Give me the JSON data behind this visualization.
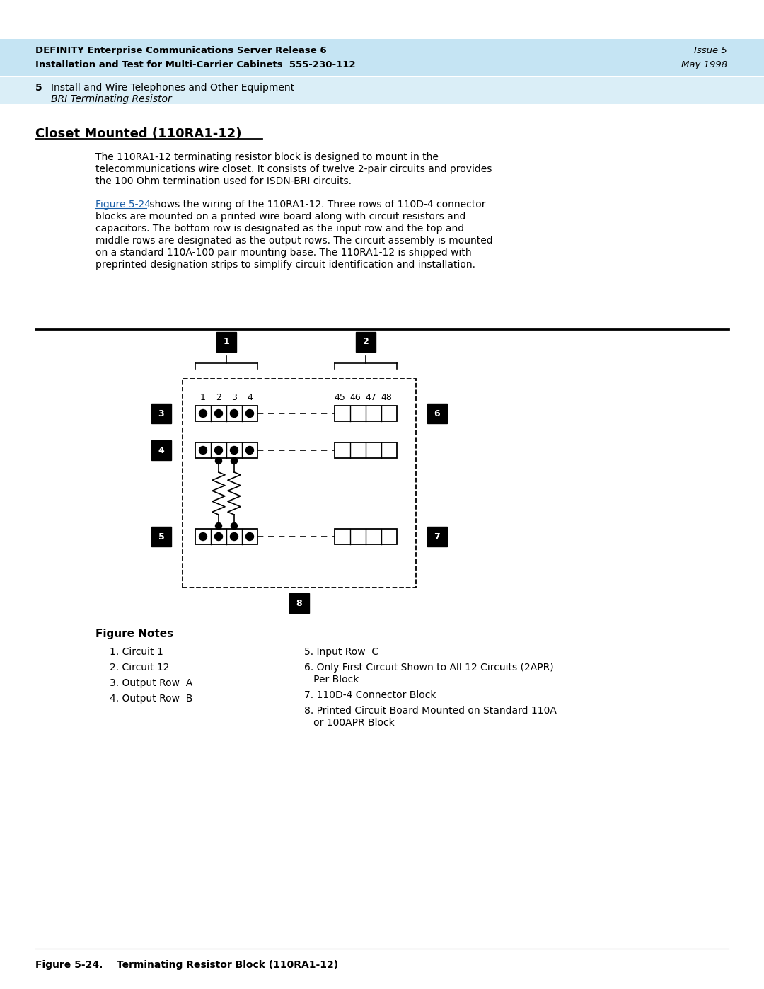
{
  "header_bg": "#c5e4f3",
  "header_line1_bold": "DEFINITY Enterprise Communications Server Release 6",
  "header_line2_bold": "Installation and Test for Multi-Carrier Cabinets  555-230-112",
  "header_right1": "Issue 5",
  "header_right2": "May 1998",
  "subheader_bg": "#daeef7",
  "subheader_num": "5",
  "subheader_text": "Install and Wire Telephones and Other Equipment",
  "subheader_italic": "BRI Terminating Resistor",
  "section_title": "Closet Mounted (110RA1-12)",
  "para1_lines": [
    "The 110RA1-12 terminating resistor block is designed to mount in the",
    "telecommunications wire closet. It consists of twelve 2-pair circuits and provides",
    "the 100 Ohm termination used for ISDN-BRI circuits."
  ],
  "para2_link": "Figure 5-24",
  "para2_lines": [
    " shows the wiring of the 110RA1-12. Three rows of 110D-4 connector",
    "blocks are mounted on a printed wire board along with circuit resistors and",
    "capacitors. The bottom row is designated as the input row and the top and",
    "middle rows are designated as the output rows. The circuit assembly is mounted",
    "on a standard 110A-100 pair mounting base. The 110RA1-12 is shipped with",
    "preprinted designation strips to simplify circuit identification and installation."
  ],
  "figure_notes_title": "Figure Notes",
  "notes_left": [
    "1. Circuit 1",
    "2. Circuit 12",
    "3. Output Row  A",
    "4. Output Row  B"
  ],
  "notes_right_lines": [
    [
      "5. Input Row  C"
    ],
    [
      "6. Only First Circuit Shown to All 12 Circuits (2APR)",
      "   Per Block"
    ],
    [
      "7. 110D-4 Connector Block"
    ],
    [
      "8. Printed Circuit Board Mounted on Standard 110A",
      "   or 100APR Block"
    ]
  ],
  "figure_caption": "Figure 5-24.    Terminating Resistor Block (110RA1-12)",
  "bg_color": "#ffffff",
  "text_color": "#000000",
  "link_color": "#1a5fa8"
}
